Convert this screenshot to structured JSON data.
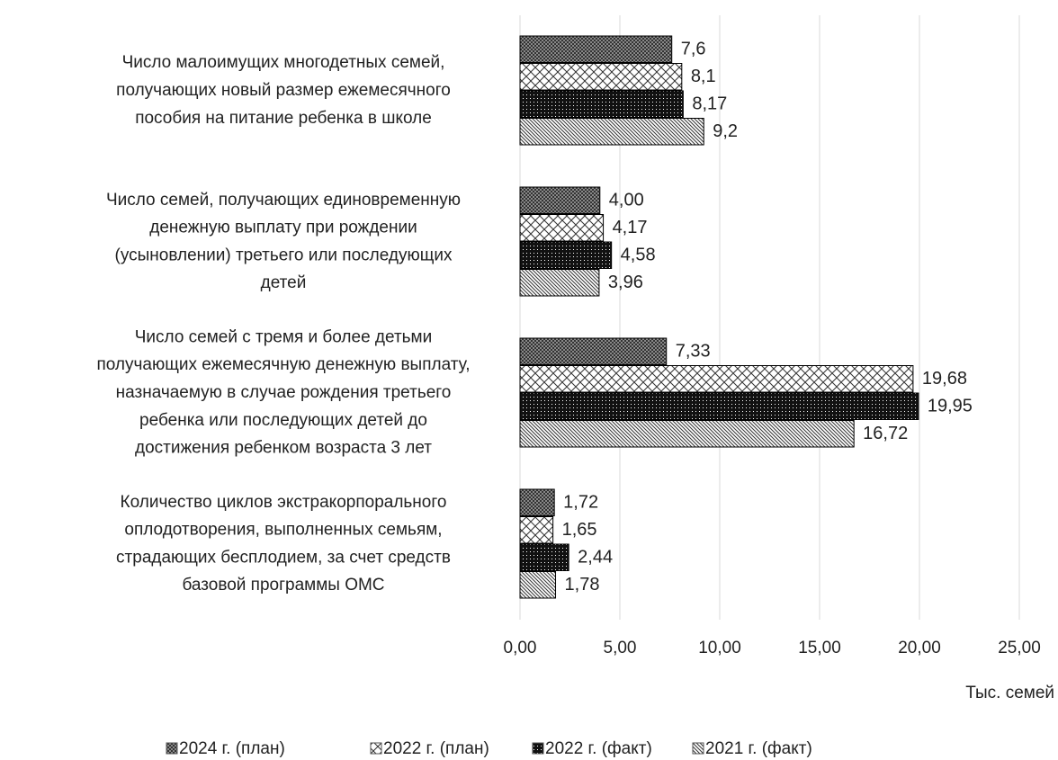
{
  "chart_data": {
    "type": "hbar",
    "x_label": "Тыс. семей",
    "categories": [
      "Число малоимущих многодетных семей,\nполучающих новый размер ежемесячного\nпособия на питание ребенка в школе",
      "Число семей, получающих единовременную\nденежную выплату при рождении\n(усыновлении) третьего или последующих\nдетей",
      "Число семей с тремя и более детьми\nполучающих ежемесячную денежную выплату,\nназначаемую в случае рождения третьего\nребенка или последующих детей до\nдостижения ребенком возраста 3 лет",
      "Количество циклов экстракорпорального\nоплодотворения, выполненных семьям,\nстрадающих бесплодием, за счет средств\nбазовой программы ОМС"
    ],
    "series": [
      {
        "name": "2024 г. (план)",
        "color": "#333333",
        "values": [
          7.6,
          4.0,
          7.33,
          1.72
        ],
        "value_labels": [
          "7,6",
          "4,00",
          "7,33",
          "1,72"
        ]
      },
      {
        "name": "2022 г. (план)",
        "color": "#333333",
        "values": [
          8.1,
          4.17,
          19.68,
          1.65
        ],
        "value_labels": [
          "8,1",
          "4,17",
          "19,68",
          "1,65"
        ]
      },
      {
        "name": "2022 г. (факт)",
        "color": "#111111",
        "values": [
          8.17,
          4.58,
          19.95,
          2.44
        ],
        "value_labels": [
          "8,17",
          "4,58",
          "19,95",
          "2,44"
        ]
      },
      {
        "name": "2021 г. (факт)",
        "color": "#333333",
        "values": [
          9.2,
          3.96,
          16.72,
          1.78
        ],
        "value_labels": [
          "9,2",
          "3,96",
          "16,72",
          "1,78"
        ]
      }
    ],
    "xlim": [
      0,
      25
    ],
    "xticks": [
      {
        "value": 0,
        "label": "0,00"
      },
      {
        "value": 5,
        "label": "5,00"
      },
      {
        "value": 10,
        "label": "10,00"
      },
      {
        "value": 15,
        "label": "15,00"
      },
      {
        "value": 20,
        "label": "20,00"
      },
      {
        "value": 25,
        "label": "25,00"
      }
    ],
    "grid": true,
    "legend": "bottom"
  }
}
